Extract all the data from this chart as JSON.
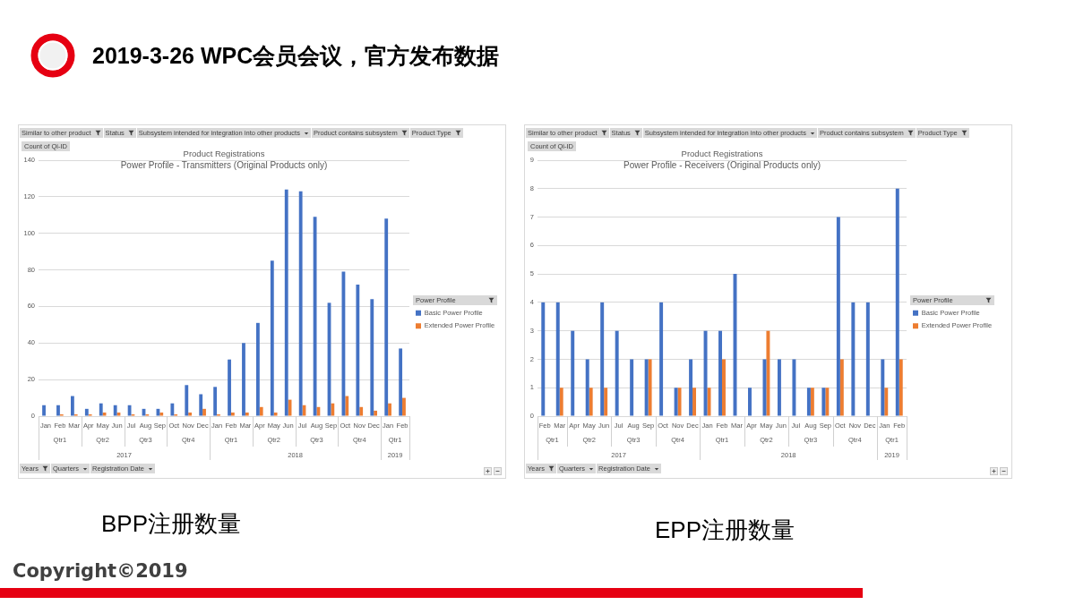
{
  "chart_data": [
    {
      "type": "other",
      "title": "2019-3-26 WPC会员会议，官方发布数据",
      "annotations": [
        "Copyright©2019"
      ]
    },
    {
      "type": "bar",
      "title": "Product Registrations",
      "subtitle": "Power Profile - Transmitters (Original Products only)",
      "ylabel": "Count of Qi-ID",
      "legend_title": "Power Profile",
      "categories": [
        "Jan",
        "Feb",
        "Mar",
        "Apr",
        "May",
        "Jun",
        "Jul",
        "Aug",
        "Sep",
        "Oct",
        "Nov",
        "Dec",
        "Jan",
        "Feb",
        "Mar",
        "Apr",
        "May",
        "Jun",
        "Jul",
        "Aug",
        "Sep",
        "Oct",
        "Nov",
        "Dec",
        "Jan",
        "Feb"
      ],
      "series": [
        {
          "name": "Basic Power Profile",
          "color": "#4472c4",
          "values": [
            6,
            6,
            11,
            4,
            7,
            6,
            6,
            4,
            4,
            7,
            17,
            12,
            16,
            31,
            40,
            51,
            85,
            124,
            123,
            109,
            62,
            79,
            72,
            64,
            108,
            37
          ]
        },
        {
          "name": "Extended Power Profile",
          "color": "#ed7d31",
          "values": [
            null,
            1,
            1,
            1,
            2,
            2,
            1,
            1,
            2,
            1,
            2,
            4,
            1,
            2,
            2,
            5,
            2,
            9,
            6,
            5,
            7,
            11,
            5,
            3,
            7,
            10
          ]
        }
      ],
      "ylim": [
        0,
        140
      ],
      "yticks": [
        0,
        20,
        40,
        60,
        80,
        100,
        120,
        140
      ],
      "grid": "y",
      "legend": "right",
      "annotations": [
        "Similar to other product",
        "Status",
        "Subsystem intended for integration into other products",
        "Product contains subsystem",
        "Product Type",
        "Years",
        "Quarters",
        "Registration Date",
        "Qtr1",
        "Qtr2",
        "Qtr3",
        "Qtr4",
        "Qtr1",
        "Qtr2",
        "Qtr3",
        "Qtr4",
        "Qtr1",
        "2017",
        "2018",
        "2019",
        "BPP注册数量"
      ]
    },
    {
      "type": "bar",
      "title": "Product Registrations",
      "subtitle": "Power Profile - Receivers (Original Products only)",
      "ylabel": "Count of Qi-ID",
      "legend_title": "Power Profile",
      "categories": [
        "Feb",
        "Mar",
        "Apr",
        "May",
        "Jun",
        "Jul",
        "Aug",
        "Sep",
        "Oct",
        "Nov",
        "Dec",
        "Jan",
        "Feb",
        "Mar",
        "Apr",
        "May",
        "Jun",
        "Jul",
        "Aug",
        "Sep",
        "Oct",
        "Nov",
        "Dec",
        "Jan",
        "Feb"
      ],
      "series": [
        {
          "name": "Basic Power Profile",
          "color": "#4472c4",
          "values": [
            4,
            4,
            3,
            2,
            4,
            3,
            2,
            2,
            4,
            1,
            2,
            3,
            3,
            5,
            1,
            2,
            2,
            2,
            1,
            1,
            7,
            4,
            4,
            2,
            8
          ]
        },
        {
          "name": "Extended Power Profile",
          "color": "#ed7d31",
          "values": [
            null,
            1,
            null,
            1,
            1,
            null,
            null,
            2,
            null,
            1,
            1,
            1,
            2,
            null,
            null,
            3,
            null,
            null,
            1,
            1,
            2,
            null,
            null,
            1,
            2
          ]
        }
      ],
      "ylim": [
        0,
        9
      ],
      "yticks": [
        0,
        1,
        2,
        3,
        4,
        5,
        6,
        7,
        8,
        9
      ],
      "grid": "y",
      "legend": "right",
      "annotations": [
        "Similar to other product",
        "Status",
        "Subsystem intended for integration into other products",
        "Product contains subsystem",
        "Product Type",
        "Years",
        "Quarters",
        "Registration Date",
        "Qtr1",
        "Qtr2",
        "Qtr3",
        "Qtr4",
        "Qtr1",
        "Qtr2",
        "Qtr3",
        "Qtr4",
        "Qtr1",
        "2017",
        "2018",
        "2019",
        "EPP注册数量"
      ]
    }
  ]
}
